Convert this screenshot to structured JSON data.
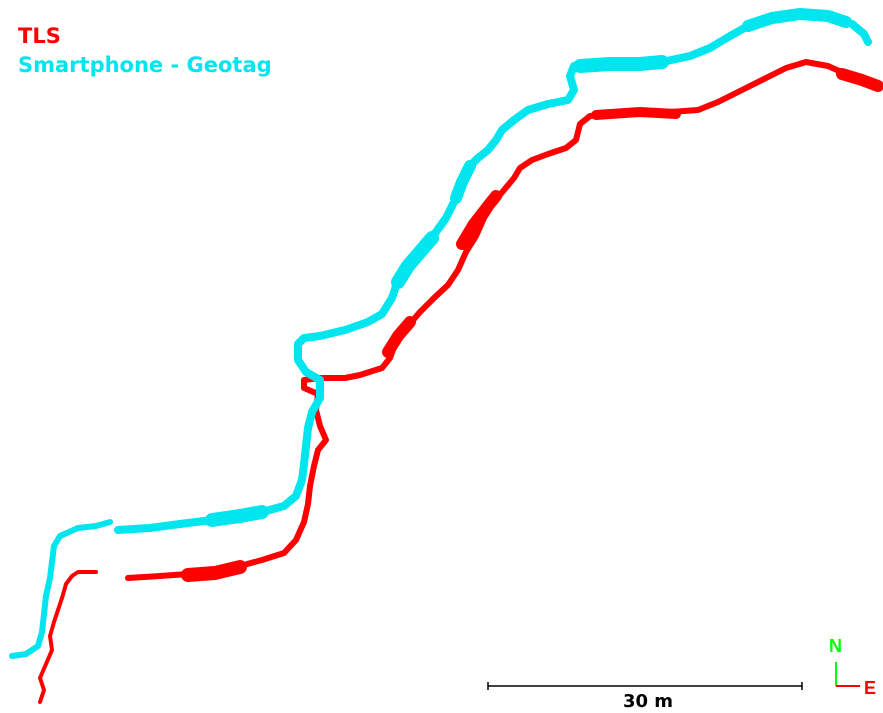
{
  "legend": {
    "items": [
      {
        "label": "TLS",
        "color": "#ff0000"
      },
      {
        "label": "Smartphone - Geotag",
        "color": "#00e5ee"
      }
    ]
  },
  "scale_bar": {
    "label": "30 m"
  },
  "north_arrow": {
    "north_label": "N",
    "east_label": "E",
    "north_color": "#00ff00",
    "east_color": "#ff0000"
  },
  "colors": {
    "tls": "#ff0000",
    "smartphone": "#00e5ee",
    "scale_bar": "#000000"
  }
}
